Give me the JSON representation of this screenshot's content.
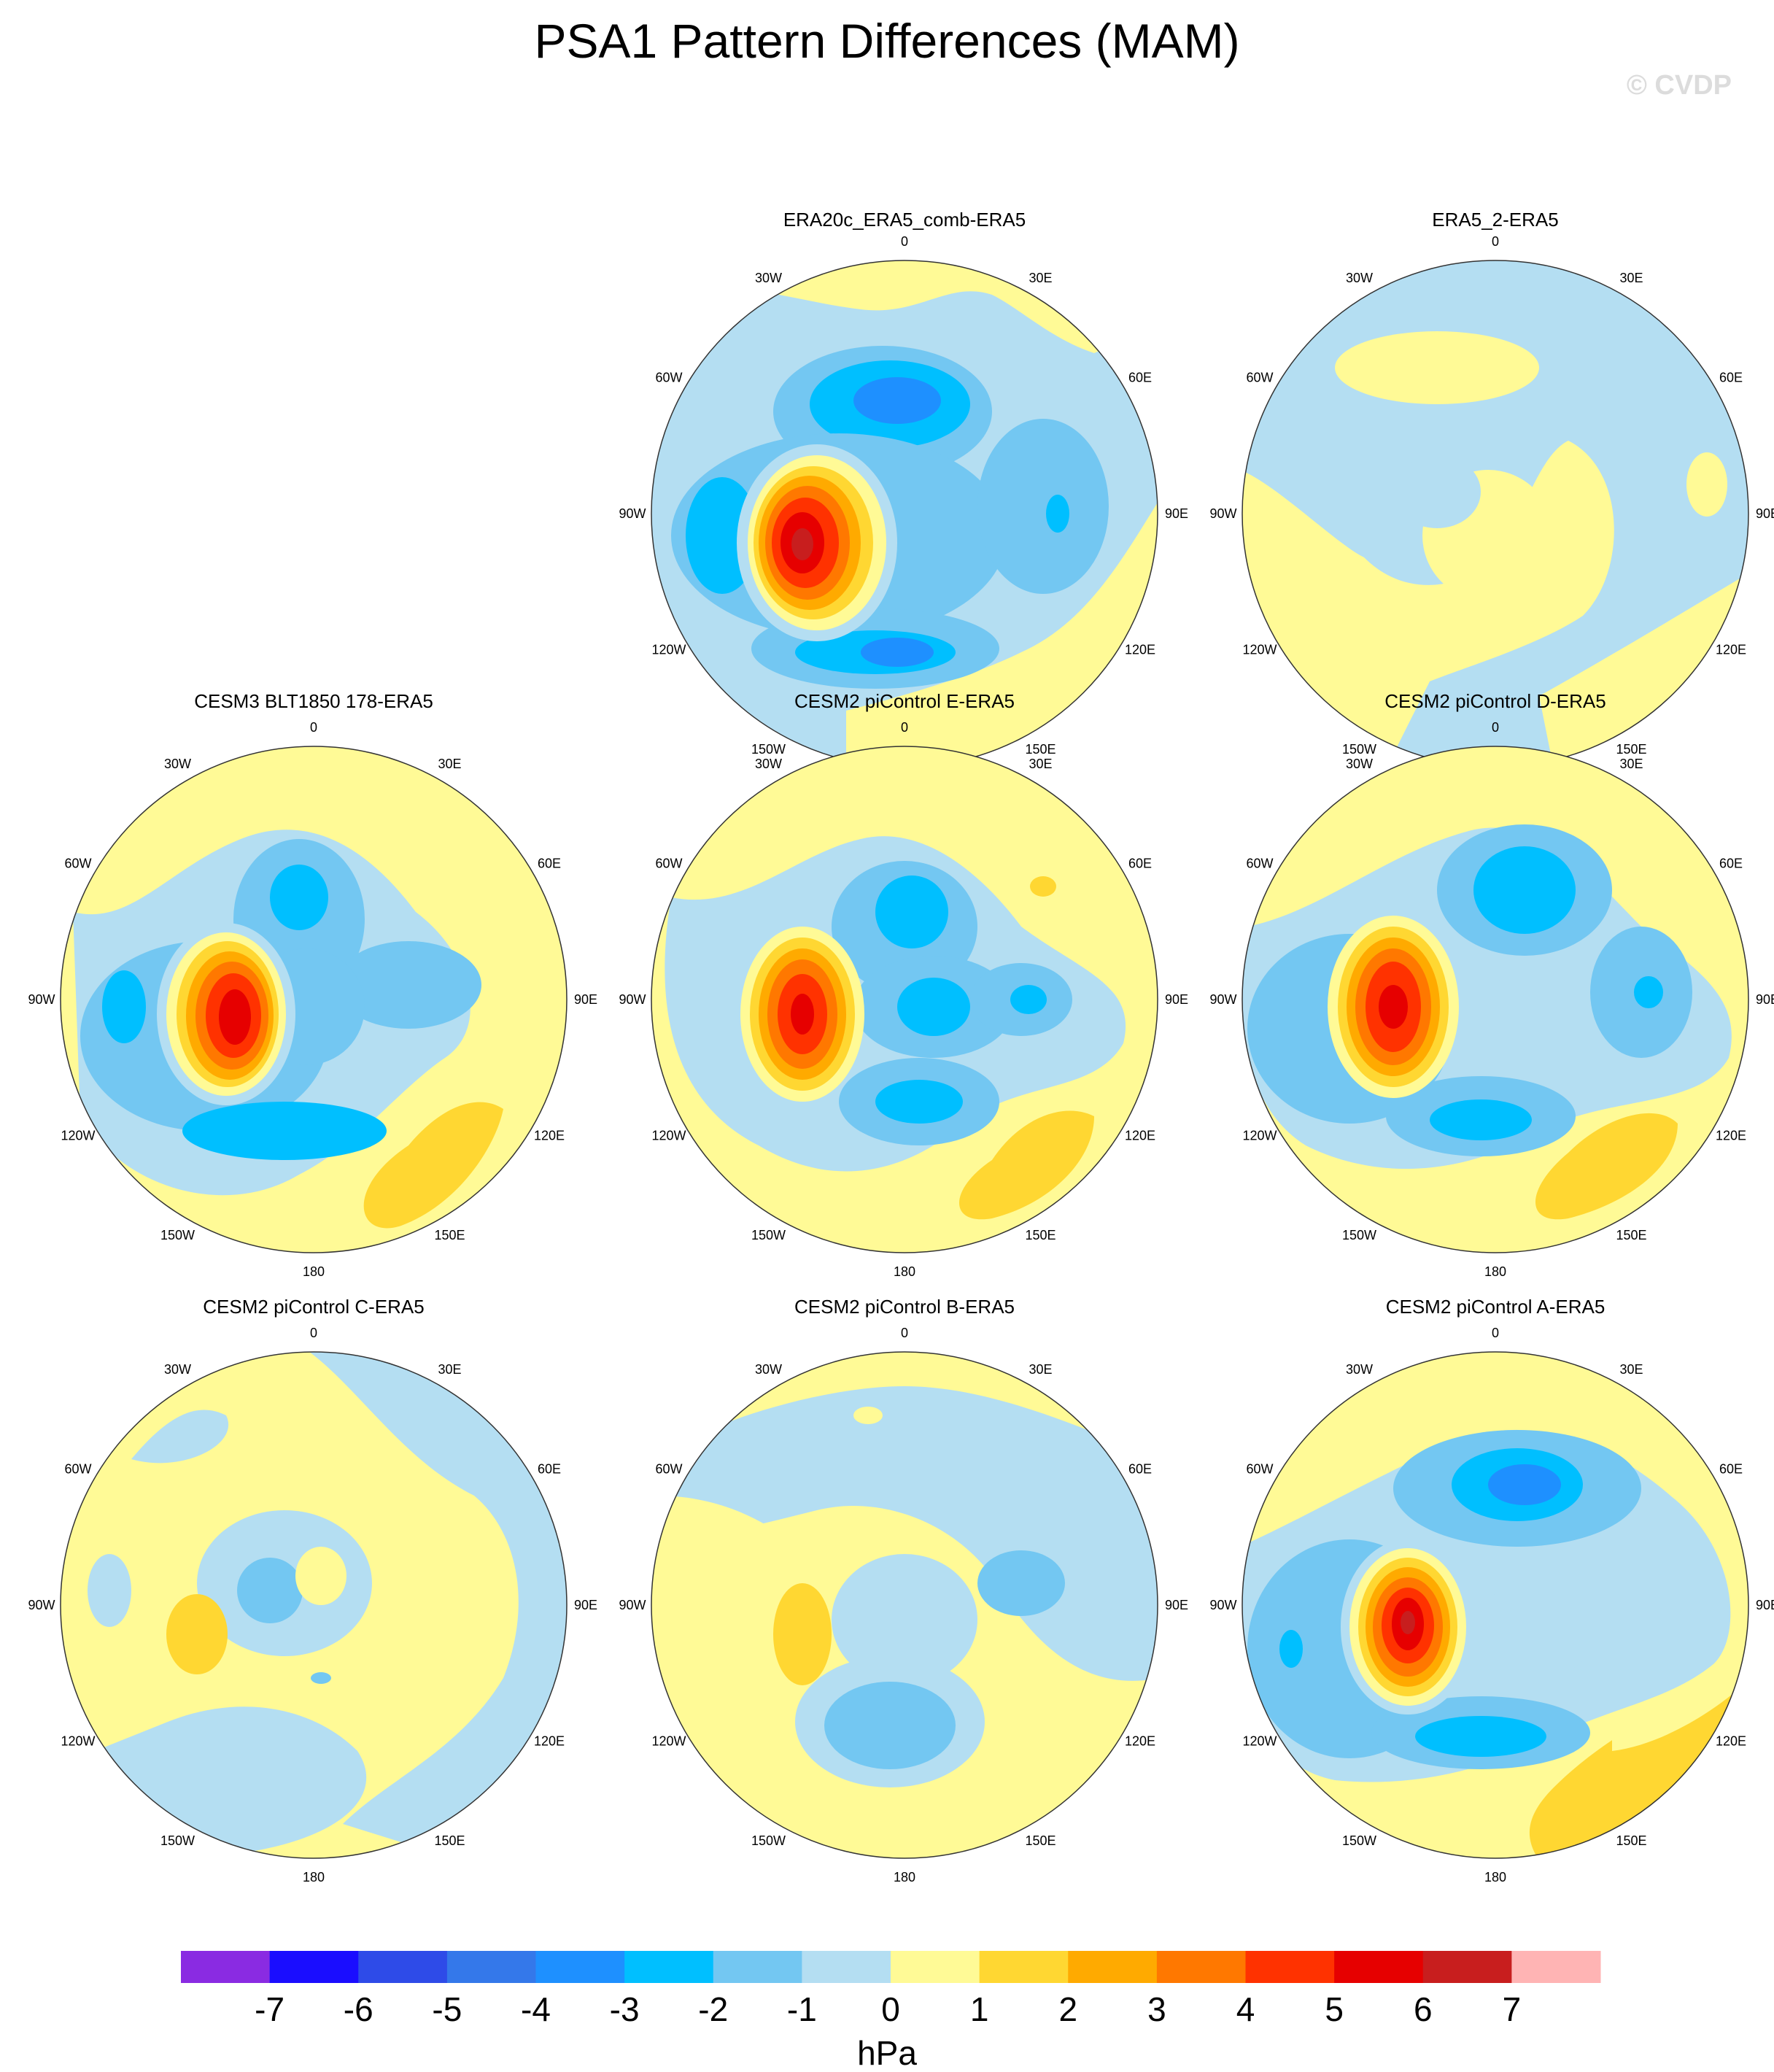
{
  "title": "PSA1 Pattern Differences (MAM)",
  "watermark": "© CVDP",
  "longitude_labels": [
    "0",
    "30E",
    "60E",
    "90E",
    "120E",
    "150E",
    "180",
    "150W",
    "120W",
    "90W",
    "60W",
    "30W"
  ],
  "panels": [
    {
      "title": "ERA20c_ERA5_comb-ERA5",
      "background_class": "0 to 1 / -1 to 0"
    },
    {
      "title": "ERA5_2-ERA5",
      "background_class": "-1 to 0"
    },
    {
      "title": "CESM3 BLT1850 178-ERA5",
      "background_class": "0 to 1"
    },
    {
      "title": "CESM2 piControl E-ERA5",
      "background_class": "0 to 1"
    },
    {
      "title": "CESM2 piControl D-ERA5",
      "background_class": "0 to 1"
    },
    {
      "title": "CESM2 piControl C-ERA5",
      "background_class": "0 to 1"
    },
    {
      "title": "CESM2 piControl B-ERA5",
      "background_class": "0 to 1"
    },
    {
      "title": "CESM2 piControl A-ERA5",
      "background_class": "0 to 1"
    }
  ],
  "colorbar": {
    "unit": "hPa",
    "labels": [
      "-7",
      "-6",
      "-5",
      "-4",
      "-3",
      "-2",
      "-1",
      "0",
      "1",
      "2",
      "3",
      "4",
      "5",
      "6",
      "7"
    ],
    "colors": [
      "#8a2be2",
      "#1a0dff",
      "#2e4be8",
      "#3478ea",
      "#1e90ff",
      "#00bfff",
      "#73c7f2",
      "#b4def2",
      "#fffa96",
      "#ffd732",
      "#ffaa00",
      "#ff7800",
      "#ff3200",
      "#e60000",
      "#c81e1e",
      "#ffb4b4"
    ]
  }
}
